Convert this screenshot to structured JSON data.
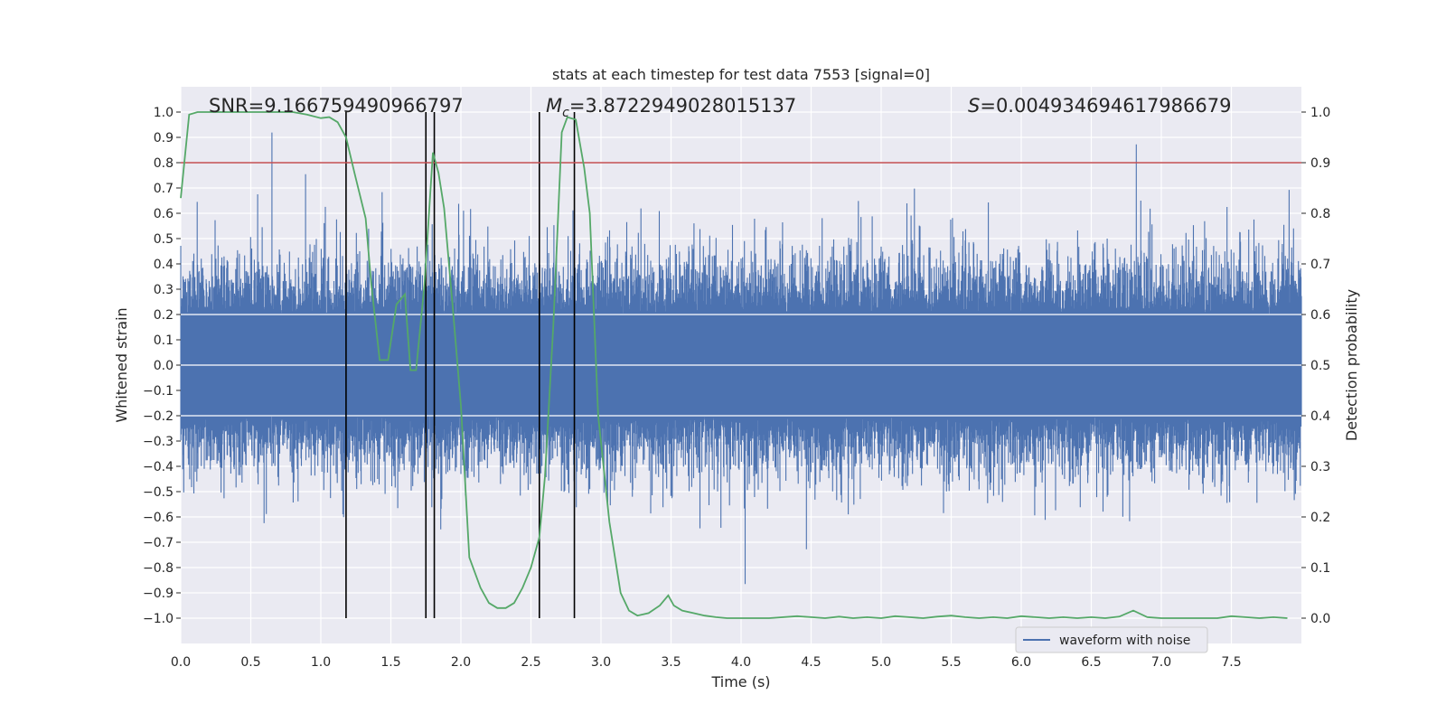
{
  "chart_data": {
    "type": "line",
    "title": "stats at each timestep for test data 7553 [signal=0]",
    "xlabel": "Time (s)",
    "ylabel": "Whitened strain",
    "y2label": "Detection probability",
    "xlim": [
      0.0,
      8.0
    ],
    "ylim": [
      -1.1,
      1.1
    ],
    "y2lim": [
      -0.05,
      1.05
    ],
    "xticks": [
      "0.0",
      "0.5",
      "1.0",
      "1.5",
      "2.0",
      "2.5",
      "3.0",
      "3.5",
      "4.0",
      "4.5",
      "5.0",
      "5.5",
      "6.0",
      "6.5",
      "7.0",
      "7.5"
    ],
    "yticks": [
      "1.0",
      "0.9",
      "0.8",
      "0.7",
      "0.6",
      "0.5",
      "0.4",
      "0.3",
      "0.2",
      "0.1",
      "0.0",
      "−0.1",
      "−0.2",
      "−0.3",
      "−0.4",
      "−0.5",
      "−0.6",
      "−0.7",
      "−0.8",
      "−0.9",
      "−1.0"
    ],
    "y2ticks": [
      "1.0",
      "0.9",
      "0.8",
      "0.7",
      "0.6",
      "0.5",
      "0.4",
      "0.3",
      "0.2",
      "0.1",
      "0.0"
    ],
    "annotations": {
      "snr_label": "SNR=",
      "snr_value": "9.166759490966797",
      "mc_symbol": "M",
      "mc_subscript": "c",
      "mc_value": "=3.8722949028015137",
      "s_symbol": "S",
      "s_value": "=0.004934694617986679"
    },
    "threshold": 0.9,
    "vlines_x": [
      1.18,
      1.75,
      1.81,
      2.56,
      2.81
    ],
    "legend": {
      "label": "waveform with noise",
      "position": "lower-right"
    },
    "series": [
      {
        "name": "waveform with noise",
        "color": "#4c72b0",
        "kind": "noise"
      },
      {
        "name": "detection probability",
        "color": "#55a868",
        "axis": "y2",
        "x": [
          0.0,
          0.06,
          0.12,
          0.2,
          0.3,
          0.4,
          0.5,
          0.6,
          0.7,
          0.8,
          0.9,
          1.0,
          1.06,
          1.12,
          1.18,
          1.24,
          1.32,
          1.36,
          1.42,
          1.48,
          1.54,
          1.6,
          1.64,
          1.68,
          1.74,
          1.8,
          1.84,
          1.88,
          1.94,
          2.0,
          2.06,
          2.14,
          2.2,
          2.26,
          2.32,
          2.38,
          2.44,
          2.5,
          2.56,
          2.6,
          2.66,
          2.72,
          2.76,
          2.82,
          2.88,
          2.92,
          2.98,
          3.06,
          3.14,
          3.2,
          3.26,
          3.34,
          3.42,
          3.48,
          3.52,
          3.58,
          3.66,
          3.74,
          3.82,
          3.9,
          4.0,
          4.2,
          4.4,
          4.5,
          4.6,
          4.7,
          4.8,
          4.9,
          5.0,
          5.1,
          5.2,
          5.3,
          5.4,
          5.5,
          5.6,
          5.7,
          5.8,
          5.9,
          6.0,
          6.1,
          6.2,
          6.3,
          6.4,
          6.5,
          6.6,
          6.7,
          6.8,
          6.9,
          7.0,
          7.2,
          7.4,
          7.5,
          7.6,
          7.7,
          7.8,
          7.9
        ],
        "y": [
          0.83,
          0.995,
          1.0,
          1.0,
          1.0,
          1.0,
          1.0,
          1.0,
          1.0,
          1.0,
          0.995,
          0.988,
          0.99,
          0.98,
          0.95,
          0.88,
          0.79,
          0.66,
          0.51,
          0.51,
          0.62,
          0.64,
          0.49,
          0.49,
          0.66,
          0.92,
          0.88,
          0.81,
          0.62,
          0.42,
          0.12,
          0.06,
          0.03,
          0.02,
          0.02,
          0.03,
          0.06,
          0.1,
          0.16,
          0.28,
          0.58,
          0.96,
          0.99,
          0.985,
          0.89,
          0.8,
          0.4,
          0.19,
          0.05,
          0.015,
          0.005,
          0.01,
          0.025,
          0.045,
          0.025,
          0.015,
          0.01,
          0.005,
          0.002,
          0.0,
          0.0,
          0.0,
          0.004,
          0.002,
          0.0,
          0.003,
          0.0,
          0.002,
          0.0,
          0.004,
          0.002,
          0.0,
          0.003,
          0.005,
          0.002,
          0.0,
          0.002,
          0.0,
          0.004,
          0.002,
          0.0,
          0.002,
          0.0,
          0.002,
          0.0,
          0.003,
          0.015,
          0.002,
          0.0,
          0.0,
          0.0,
          0.004,
          0.002,
          0.0,
          0.002,
          0.0
        ]
      },
      {
        "name": "threshold",
        "color": "#c44e52",
        "axis": "y2"
      }
    ]
  }
}
